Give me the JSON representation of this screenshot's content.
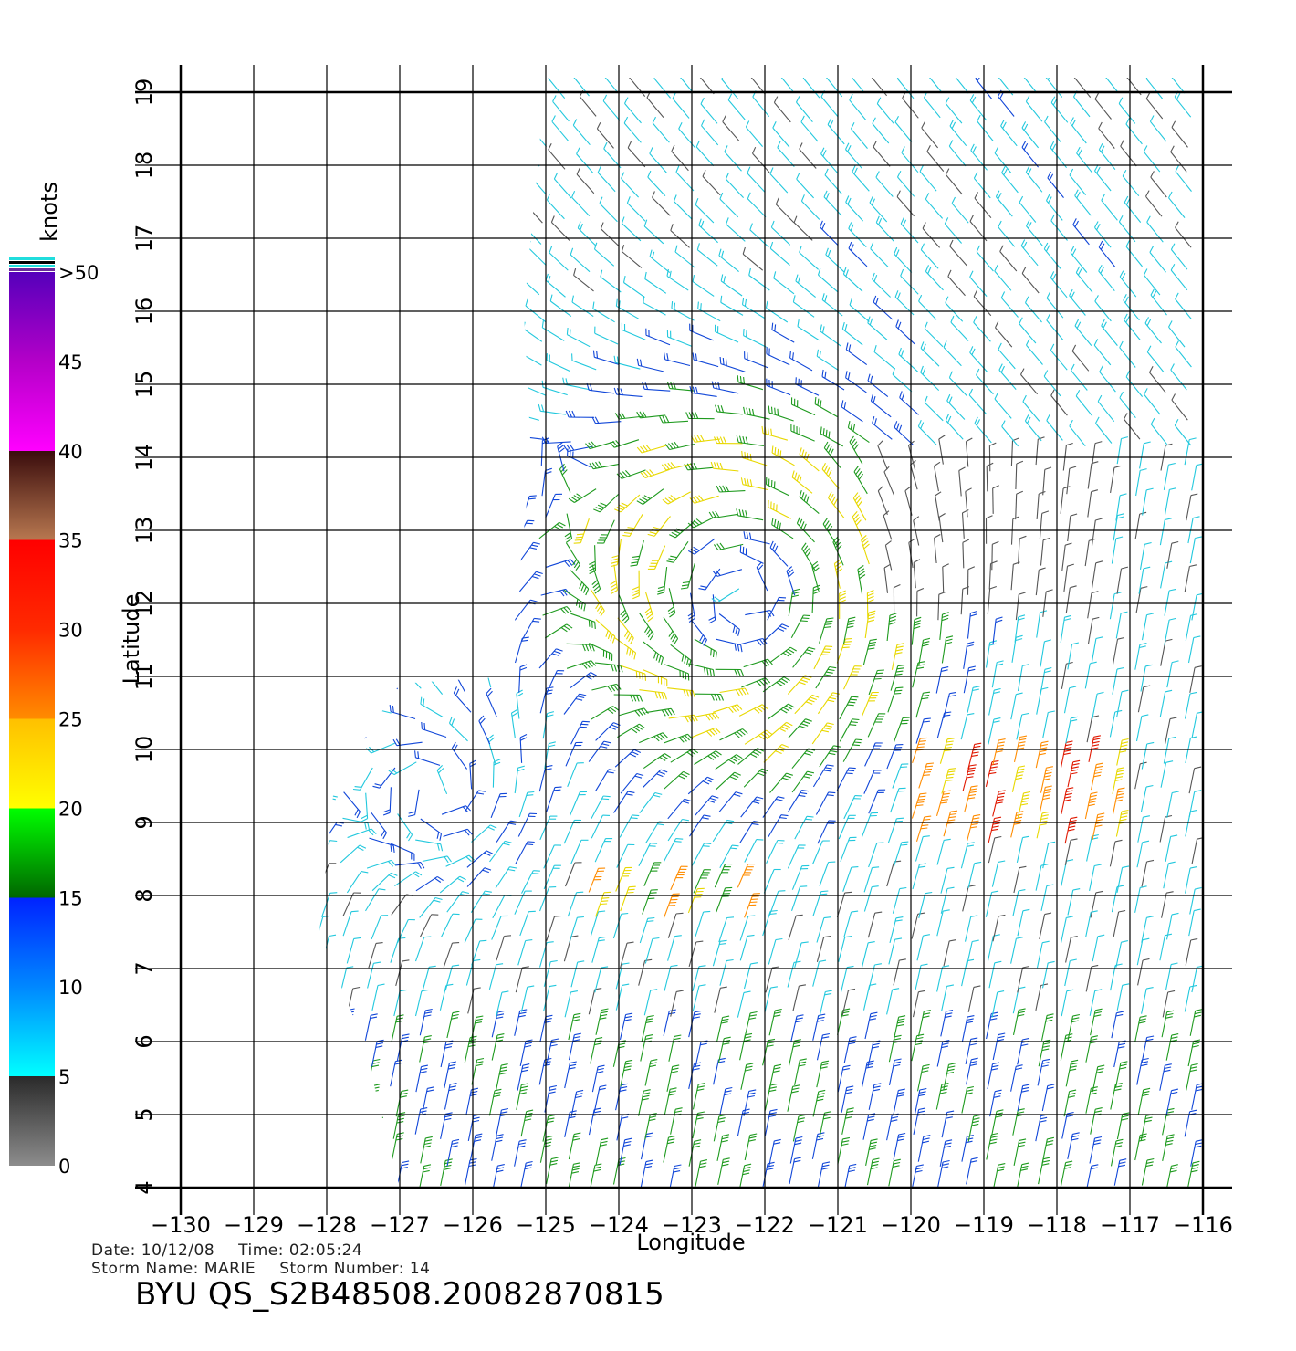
{
  "map": {
    "x_axis": {
      "title": "Longitude",
      "ticks": [
        -130,
        -129,
        -128,
        -127,
        -126,
        -125,
        -124,
        -123,
        -122,
        -121,
        -120,
        -119,
        -118,
        -117,
        -116
      ],
      "tick_labels": [
        "−130",
        "−129",
        "−128",
        "−127",
        "−126",
        "−125",
        "−124",
        "−123",
        "−122",
        "−121",
        "−120",
        "−119",
        "−118",
        "−117",
        "−116"
      ],
      "range": [
        -130,
        -116
      ]
    },
    "y_axis": {
      "title": "Latitude",
      "ticks": [
        4,
        5,
        6,
        7,
        8,
        9,
        10,
        11,
        12,
        13,
        14,
        15,
        16,
        17,
        18,
        19
      ],
      "tick_labels": [
        "4",
        "5",
        "6",
        "7",
        "8",
        "9",
        "10",
        "11",
        "12",
        "13",
        "14",
        "15",
        "16",
        "17",
        "18",
        "19"
      ],
      "range": [
        4,
        19
      ]
    },
    "grid": true,
    "field": "wind barbs (QuikSCAT swath)",
    "swath_outline_lonlat": [
      [
        -125.0,
        19.2
      ],
      [
        -115.9,
        19.2
      ],
      [
        -115.9,
        4.0
      ],
      [
        -127.0,
        4.0
      ],
      [
        -127.5,
        6.0
      ],
      [
        -128.1,
        7.5
      ],
      [
        -127.9,
        9.5
      ],
      [
        -127.0,
        10.9
      ],
      [
        -125.5,
        11.0
      ],
      [
        -125.2,
        14.0
      ],
      [
        -125.3,
        16.0
      ]
    ],
    "storm_center_lonlat": [
      -122.3,
      12.1
    ],
    "secondary_center_lonlat": [
      -126.5,
      9.4
    ],
    "colors": {
      "grid": "#000000",
      "background": "#ffffff"
    }
  },
  "colorbar": {
    "title": "knots",
    "labels": [
      {
        "value": 0,
        "text": "0"
      },
      {
        "value": 5,
        "text": "5"
      },
      {
        "value": 10,
        "text": "10"
      },
      {
        "value": 15,
        "text": "15"
      },
      {
        "value": 20,
        "text": "20"
      },
      {
        "value": 25,
        "text": "25"
      },
      {
        "value": 30,
        "text": "30"
      },
      {
        "value": 35,
        "text": "35"
      },
      {
        "value": 40,
        "text": "40"
      },
      {
        "value": 45,
        "text": "45"
      },
      {
        "value": 50,
        "text": ">50"
      }
    ],
    "stops": [
      {
        "k": 0,
        "c": "#8c8c8c"
      },
      {
        "k": 5,
        "c": "#2a2a2a"
      },
      {
        "k": 5,
        "c": "#00ffff"
      },
      {
        "k": 10,
        "c": "#0088ff"
      },
      {
        "k": 15,
        "c": "#0022ff"
      },
      {
        "k": 15,
        "c": "#006600"
      },
      {
        "k": 20,
        "c": "#00ff00"
      },
      {
        "k": 20,
        "c": "#ffff00"
      },
      {
        "k": 25,
        "c": "#ffc000"
      },
      {
        "k": 25,
        "c": "#ff8c00"
      },
      {
        "k": 30,
        "c": "#ff2a00"
      },
      {
        "k": 35,
        "c": "#ff0000"
      },
      {
        "k": 35,
        "c": "#b87850"
      },
      {
        "k": 40,
        "c": "#3a0c0c"
      },
      {
        "k": 40,
        "c": "#ff00ff"
      },
      {
        "k": 45,
        "c": "#b400c8"
      },
      {
        "k": 50,
        "c": "#5500bb"
      }
    ]
  },
  "footer": {
    "date_label": "Date:",
    "date_value": "10/12/08",
    "time_label": "Time:",
    "time_value": "02:05:24",
    "storm_name_label": "Storm Name:",
    "storm_name_value": "MARIE",
    "storm_number_label": "Storm Number:",
    "storm_number_value": "14",
    "product_id": "BYU QS_S2B48508.20082870815"
  }
}
